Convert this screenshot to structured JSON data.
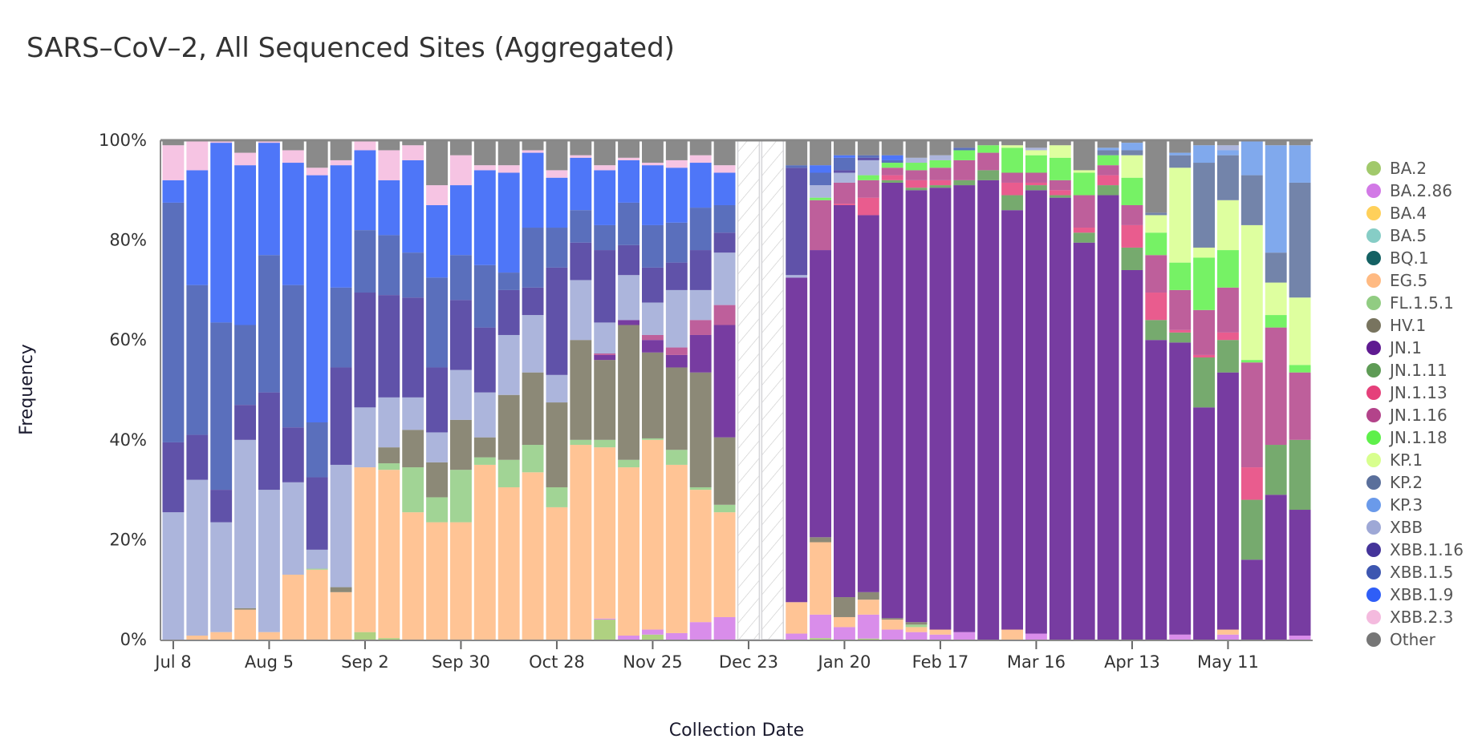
{
  "chart_data": {
    "type": "bar",
    "stacked": true,
    "title": "SARS–CoV–2, All Sequenced Sites (Aggregated)",
    "xlabel": "Collection Date",
    "ylabel": "Frequency",
    "ylim": [
      0,
      100
    ],
    "yticks": [
      "0%",
      "20%",
      "40%",
      "60%",
      "80%",
      "100%"
    ],
    "xticks": [
      "Jul 8",
      "Aug 5",
      "Sep 2",
      "Sep 30",
      "Oct 28",
      "Nov 25",
      "Dec 23",
      "Jan 20",
      "Feb 17",
      "Mar 16",
      "Apr 13",
      "May 11"
    ],
    "legend_position": "right",
    "no_data_style": "hatched",
    "series": [
      {
        "name": "BA.2",
        "color": "#a1c96b"
      },
      {
        "name": "BA.2.86",
        "color": "#d279e6"
      },
      {
        "name": "BA.4",
        "color": "#ffd05a"
      },
      {
        "name": "BA.5",
        "color": "#86cdc6"
      },
      {
        "name": "BQ.1",
        "color": "#146163"
      },
      {
        "name": "EG.5",
        "color": "#ffba82"
      },
      {
        "name": "FL.1.5.1",
        "color": "#91cc82"
      },
      {
        "name": "HV.1",
        "color": "#78745f"
      },
      {
        "name": "JN.1",
        "color": "#5f1a91"
      },
      {
        "name": "JN.1.11",
        "color": "#5e9b55"
      },
      {
        "name": "JN.1.13",
        "color": "#e5407a"
      },
      {
        "name": "JN.1.16",
        "color": "#b3438a"
      },
      {
        "name": "JN.1.18",
        "color": "#5ef04a"
      },
      {
        "name": "KP.1",
        "color": "#d8ff8e"
      },
      {
        "name": "KP.2",
        "color": "#5a6f9b"
      },
      {
        "name": "KP.3",
        "color": "#6a9aea"
      },
      {
        "name": "XBB",
        "color": "#9ea8d6"
      },
      {
        "name": "XBB.1.16",
        "color": "#44349a"
      },
      {
        "name": "XBB.1.5",
        "color": "#3d56b0"
      },
      {
        "name": "XBB.1.9",
        "color": "#2f5ef7"
      },
      {
        "name": "XBB.2.3",
        "color": "#f4bade"
      },
      {
        "name": "Other",
        "color": "#767676"
      }
    ],
    "bars": [
      {
        "date": "Jul 8",
        "values": {
          "XBB": 25.5,
          "XBB.1.16": 14,
          "XBB.1.5": 48,
          "XBB.1.9": 4.5,
          "XBB.2.3": 7,
          "Other": 1
        }
      },
      {
        "date": "Jul 15",
        "values": {
          "EG.5": 0.8,
          "XBB": 31.2,
          "XBB.1.16": 9,
          "XBB.1.5": 30,
          "XBB.1.9": 23,
          "XBB.2.3": 6
        }
      },
      {
        "date": "Jul 22",
        "values": {
          "EG.5": 1.5,
          "XBB": 22,
          "XBB.1.16": 6.5,
          "XBB.1.5": 33.5,
          "XBB.1.9": 36,
          "XBB.2.3": 0.5
        }
      },
      {
        "date": "Jul 29",
        "values": {
          "EG.5": 6,
          "HV.1": 0.3,
          "XBB": 33.7,
          "XBB.1.16": 7,
          "XBB.1.5": 16,
          "XBB.1.9": 32,
          "XBB.2.3": 2.5,
          "Other": 2.5
        }
      },
      {
        "date": "Aug 5",
        "values": {
          "EG.5": 1.5,
          "XBB": 28.5,
          "XBB.1.16": 19.5,
          "XBB.1.5": 27.5,
          "XBB.1.9": 22.5,
          "XBB.2.3": 0.5
        }
      },
      {
        "date": "Aug 12",
        "values": {
          "EG.5": 13,
          "XBB": 18.5,
          "XBB.1.16": 11,
          "XBB.1.5": 28.5,
          "XBB.1.9": 24.5,
          "XBB.2.3": 2.5,
          "Other": 2
        }
      },
      {
        "date": "Aug 19",
        "values": {
          "EG.5": 14,
          "FL.1.5.1": 0.2,
          "XBB": 3.8,
          "XBB.1.16": 14.5,
          "XBB.1.5": 11,
          "XBB.1.9": 49.5,
          "XBB.2.3": 1.5,
          "Other": 5.5
        }
      },
      {
        "date": "Aug 26",
        "values": {
          "EG.5": 9.5,
          "HV.1": 1,
          "XBB": 24.5,
          "XBB.1.16": 19.5,
          "XBB.1.5": 16,
          "XBB.1.9": 24.5,
          "XBB.2.3": 1,
          "Other": 4
        }
      },
      {
        "date": "Sep 2",
        "values": {
          "BA.2": 1.5,
          "EG.5": 33,
          "XBB": 12,
          "XBB.1.16": 23,
          "XBB.1.5": 12.5,
          "XBB.1.9": 16,
          "XBB.2.3": 2
        }
      },
      {
        "date": "Sep 9",
        "values": {
          "BA.2": 0.3,
          "EG.5": 33.7,
          "FL.1.5.1": 1.3,
          "HV.1": 3.2,
          "XBB": 10,
          "XBB.1.16": 20.5,
          "XBB.1.5": 12,
          "XBB.1.9": 11,
          "XBB.2.3": 6,
          "Other": 2
        }
      },
      {
        "date": "Sep 16",
        "values": {
          "EG.5": 25.5,
          "FL.1.5.1": 9,
          "HV.1": 7.5,
          "XBB": 6.5,
          "XBB.1.16": 20,
          "XBB.1.5": 9,
          "XBB.1.9": 18.5,
          "XBB.2.3": 3,
          "Other": 1
        }
      },
      {
        "date": "Sep 23",
        "values": {
          "EG.5": 23.5,
          "FL.1.5.1": 5,
          "HV.1": 7,
          "XBB": 6,
          "XBB.1.16": 13,
          "XBB.1.5": 18,
          "XBB.1.9": 14.5,
          "XBB.2.3": 4,
          "Other": 9
        }
      },
      {
        "date": "Sep 30",
        "values": {
          "EG.5": 23.5,
          "FL.1.5.1": 10.5,
          "HV.1": 10,
          "XBB": 10,
          "XBB.1.16": 14,
          "XBB.1.5": 9,
          "XBB.1.9": 14,
          "XBB.2.3": 6,
          "Other": 3
        }
      },
      {
        "date": "Oct 7",
        "values": {
          "EG.5": 35,
          "FL.1.5.1": 1.5,
          "HV.1": 4,
          "XBB": 9,
          "XBB.1.16": 13,
          "XBB.1.5": 12.5,
          "XBB.1.9": 19,
          "XBB.2.3": 1,
          "Other": 5
        }
      },
      {
        "date": "Oct 14",
        "values": {
          "EG.5": 30.5,
          "FL.1.5.1": 5.5,
          "HV.1": 13,
          "XBB": 12,
          "XBB.1.16": 9,
          "XBB.1.5": 3.5,
          "XBB.1.9": 20,
          "XBB.2.3": 1.5,
          "Other": 5
        }
      },
      {
        "date": "Oct 21",
        "values": {
          "EG.5": 33.5,
          "FL.1.5.1": 5.5,
          "HV.1": 14.5,
          "XBB": 11.5,
          "XBB.1.16": 5.5,
          "XBB.1.5": 12,
          "XBB.1.9": 15,
          "XBB.2.3": 0.5,
          "Other": 2
        }
      },
      {
        "date": "Oct 28",
        "values": {
          "EG.5": 26.5,
          "FL.1.5.1": 4,
          "HV.1": 17,
          "XBB": 5.5,
          "XBB.1.16": 21.5,
          "XBB.1.5": 8,
          "XBB.1.9": 10,
          "XBB.2.3": 1.5,
          "Other": 6
        }
      },
      {
        "date": "Nov 4",
        "values": {
          "EG.5": 39,
          "FL.1.5.1": 1,
          "HV.1": 20,
          "XBB": 12,
          "XBB.1.16": 7.5,
          "XBB.1.5": 6.5,
          "XBB.1.9": 10.5,
          "XBB.2.3": 0.5,
          "Other": 3
        }
      },
      {
        "date": "Nov 11",
        "values": {
          "BA.2": 4,
          "BA.2.86": 0.2,
          "EG.5": 34.3,
          "FL.1.5.1": 1.5,
          "HV.1": 16,
          "JN.1": 1,
          "JN.1.16": 0.3,
          "XBB": 6.2,
          "XBB.1.16": 14.5,
          "XBB.1.5": 5,
          "XBB.1.9": 11,
          "XBB.2.3": 1,
          "Other": 5
        }
      },
      {
        "date": "Nov 18",
        "values": {
          "BA.2.86": 0.8,
          "EG.5": 33.7,
          "FL.1.5.1": 1.5,
          "HV.1": 27,
          "JN.1": 1,
          "XBB": 9,
          "XBB.1.16": 6,
          "XBB.1.5": 8.5,
          "XBB.1.9": 8.5,
          "XBB.2.3": 0.5,
          "Other": 3.5
        }
      },
      {
        "date": "Nov 25",
        "values": {
          "BA.2": 1,
          "BA.2.86": 1,
          "EG.5": 38,
          "FL.1.5.1": 0.3,
          "HV.1": 17.2,
          "JN.1": 2.5,
          "JN.1.16": 1,
          "XBB": 6.5,
          "XBB.1.16": 7,
          "XBB.1.5": 8.5,
          "XBB.1.9": 12,
          "XBB.2.3": 0.5,
          "Other": 4.5
        }
      },
      {
        "date": "Dec 2",
        "values": {
          "BA.2.86": 1.3,
          "EG.5": 33.7,
          "FL.1.5.1": 3,
          "HV.1": 16.5,
          "JN.1": 2.5,
          "JN.1.16": 1.5,
          "XBB": 11.5,
          "XBB.1.16": 5.5,
          "XBB.1.5": 8,
          "XBB.1.9": 11,
          "XBB.2.3": 1.5,
          "Other": 4
        }
      },
      {
        "date": "Dec 9",
        "values": {
          "BA.2.86": 3.5,
          "EG.5": 26.5,
          "FL.1.5.1": 0.5,
          "HV.1": 23,
          "JN.1": 7.5,
          "JN.1.16": 3,
          "XBB": 6,
          "XBB.1.16": 8,
          "XBB.1.5": 8.5,
          "XBB.1.9": 9,
          "XBB.2.3": 1.5,
          "Other": 3
        }
      },
      {
        "date": "Dec 16",
        "values": {
          "BA.2.86": 4.5,
          "EG.5": 21,
          "FL.1.5.1": 1.5,
          "HV.1": 13.5,
          "JN.1": 22.5,
          "JN.1.16": 4,
          "XBB": 10.5,
          "XBB.1.16": 4,
          "XBB.1.5": 5.5,
          "XBB.1.9": 6.5,
          "XBB.2.3": 1.5,
          "Other": 5
        }
      },
      {
        "date": "Dec 23",
        "values": null
      },
      {
        "date": "Dec 30",
        "values": null
      },
      {
        "date": "Jan 6",
        "values": {
          "BA.2.86": 1.2,
          "EG.5": 6.3,
          "JN.1": 65,
          "XBB": 0.5,
          "XBB.1.16": 21.5,
          "XBB.1.5": 0.5,
          "Other": 5
        }
      },
      {
        "date": "Jan 13",
        "values": {
          "BA.2": 0.3,
          "BA.2.86": 4.7,
          "EG.5": 14.5,
          "HV.1": 1,
          "JN.1": 57.5,
          "JN.1.16": 10,
          "JN.1.18": 0.5,
          "XBB": 2.5,
          "XBB.1.5": 2.5,
          "XBB.1.9": 1.5,
          "Other": 5
        }
      },
      {
        "date": "Jan 20",
        "values": {
          "BA.2.86": 2.5,
          "EG.5": 2,
          "HV.1": 4,
          "JN.1": 78.5,
          "JN.1.13": 0.3,
          "JN.1.16": 4.2,
          "XBB": 2,
          "XBB.1.16": 0.5,
          "XBB.1.5": 2.5,
          "XBB.1.9": 0.5,
          "Other": 3
        }
      },
      {
        "date": "Jan 27",
        "values": {
          "BA.2": 0.2,
          "BA.2.86": 4.8,
          "EG.5": 3,
          "HV.1": 1.5,
          "JN.1": 75.5,
          "JN.1.13": 3.5,
          "JN.1.16": 3.5,
          "JN.1.18": 1,
          "XBB": 3,
          "XBB.1.16": 0.5,
          "XBB.1.5": 0.5,
          "Other": 3
        }
      },
      {
        "date": "Feb 3",
        "values": {
          "BA.2.86": 2,
          "EG.5": 2,
          "HV.1": 0.3,
          "JN.1": 87.2,
          "JN.1.11": 0.5,
          "JN.1.13": 1,
          "JN.1.16": 1.5,
          "JN.1.18": 1,
          "XBB.1.5": 0.5,
          "XBB.1.9": 1,
          "Other": 3
        }
      },
      {
        "date": "Feb 10",
        "values": {
          "BA.2.86": 1.5,
          "EG.5": 1,
          "FL.1.5.1": 0.5,
          "HV.1": 0.5,
          "JN.1": 86.5,
          "JN.1.11": 0.5,
          "JN.1.13": 1.5,
          "JN.1.16": 2,
          "JN.1.18": 1.5,
          "XBB": 1,
          "Other": 3.5
        }
      },
      {
        "date": "Feb 17",
        "values": {
          "BA.2.86": 1,
          "EG.5": 1,
          "JN.1": 88.5,
          "JN.1.11": 0.5,
          "JN.1.13": 1,
          "JN.1.16": 2.5,
          "JN.1.18": 1.5,
          "XBB": 1,
          "Other": 3
        }
      },
      {
        "date": "Feb 24",
        "values": {
          "BA.2.86": 1.5,
          "JN.1": 89.5,
          "JN.1.11": 1,
          "JN.1.16": 4,
          "JN.1.18": 2,
          "XBB.1.5": 0.5,
          "Other": 1.5
        }
      },
      {
        "date": "Mar 2",
        "values": {
          "JN.1": 92,
          "JN.1.11": 2,
          "JN.1.16": 3.5,
          "JN.1.18": 1.5,
          "Other": 1
        }
      },
      {
        "date": "Mar 9",
        "values": {
          "EG.5": 2,
          "JN.1": 84,
          "JN.1.11": 3,
          "JN.1.13": 2.5,
          "JN.1.16": 2,
          "JN.1.18": 5,
          "KP.1": 0.5,
          "Other": 1
        }
      },
      {
        "date": "Mar 16",
        "values": {
          "BA.2.86": 1.2,
          "JN.1": 88.8,
          "JN.1.11": 1,
          "JN.1.13": 0.5,
          "JN.1.16": 2,
          "JN.1.18": 3.5,
          "KP.1": 1,
          "XBB": 0.5,
          "Other": 1.5
        }
      },
      {
        "date": "Mar 23",
        "values": {
          "JN.1": 88.5,
          "JN.1.11": 0.5,
          "JN.1.13": 1,
          "JN.1.16": 2,
          "JN.1.18": 4.5,
          "KP.1": 2.5,
          "Other": 1
        }
      },
      {
        "date": "Mar 30",
        "values": {
          "JN.1": 79.5,
          "JN.1.11": 2,
          "JN.1.13": 1,
          "JN.1.16": 6.5,
          "JN.1.18": 4.5,
          "KP.1": 0.5,
          "Other": 6
        }
      },
      {
        "date": "Apr 6",
        "values": {
          "JN.1": 89,
          "JN.1.11": 2,
          "JN.1.13": 2,
          "JN.1.16": 2,
          "JN.1.18": 2,
          "KP.2": 1,
          "KP.3": 0.5,
          "Other": 1.5
        }
      },
      {
        "date": "Apr 13",
        "values": {
          "JN.1": 74,
          "JN.1.11": 4.5,
          "JN.1.13": 4.5,
          "JN.1.16": 4,
          "JN.1.18": 5.5,
          "KP.1": 4.5,
          "KP.2": 1,
          "KP.3": 1.5,
          "Other": 0.5
        }
      },
      {
        "date": "Apr 20",
        "values": {
          "JN.1": 60,
          "JN.1.11": 4,
          "JN.1.13": 5.5,
          "JN.1.16": 7.5,
          "JN.1.18": 4.5,
          "KP.1": 3.5,
          "KP.2": 0.5,
          "Other": 14.5
        }
      },
      {
        "date": "Apr 27",
        "values": {
          "BA.2.86": 1,
          "JN.1": 58.5,
          "JN.1.11": 2,
          "JN.1.13": 0.5,
          "JN.1.16": 8,
          "JN.1.18": 5.5,
          "KP.1": 19,
          "KP.2": 2.5,
          "KP.3": 0.5,
          "Other": 2.5
        }
      },
      {
        "date": "May 4",
        "values": {
          "JN.1": 46.5,
          "JN.1.11": 10,
          "JN.1.13": 0.5,
          "JN.1.16": 9,
          "JN.1.18": 10.5,
          "KP.1": 2,
          "KP.2": 17,
          "KP.3": 3.5,
          "Other": 1
        }
      },
      {
        "date": "May 11",
        "values": {
          "BA.2.86": 1,
          "EG.5": 1,
          "JN.1": 51.5,
          "JN.1.11": 6.5,
          "JN.1.13": 1.5,
          "JN.1.16": 9,
          "JN.1.18": 7.5,
          "KP.1": 10,
          "KP.2": 9,
          "KP.3": 1,
          "XBB": 1,
          "Other": 1
        }
      },
      {
        "date": "May 18",
        "values": {
          "JN.1": 16,
          "JN.1.11": 12,
          "JN.1.13": 6.5,
          "JN.1.16": 21,
          "JN.1.18": 0.5,
          "KP.1": 27,
          "KP.2": 10,
          "KP.3": 7
        }
      },
      {
        "date": "May 25",
        "values": {
          "JN.1": 29,
          "JN.1.11": 10,
          "JN.1.16": 23.5,
          "JN.1.18": 2.5,
          "KP.1": 6.5,
          "KP.2": 6,
          "KP.3": 21.5,
          "Other": 1
        }
      },
      {
        "date": "Jun 1",
        "values": {
          "BA.2.86": 0.8,
          "JN.1": 25.2,
          "JN.1.11": 14,
          "JN.1.16": 13.5,
          "JN.1.18": 1.5,
          "KP.1": 13.5,
          "KP.2": 23,
          "KP.3": 7.5,
          "Other": 1
        }
      }
    ]
  }
}
